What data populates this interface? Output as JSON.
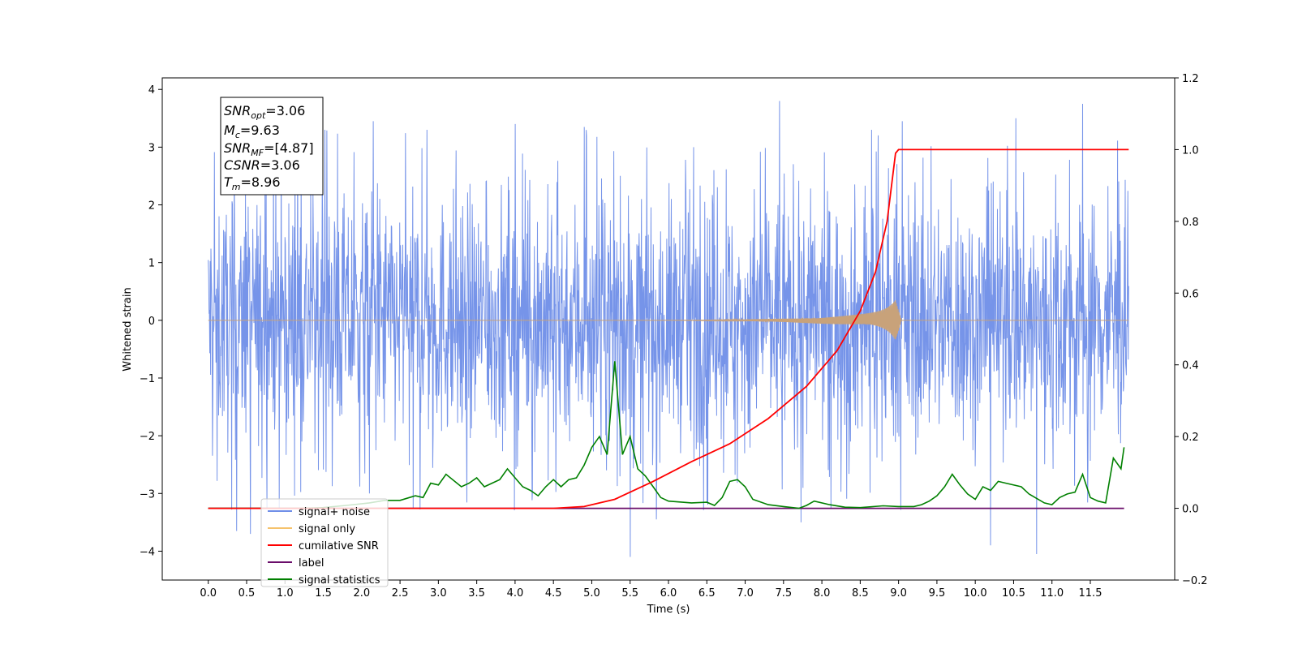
{
  "chart_data": {
    "type": "line",
    "xlabel": "Time (s)",
    "ylabel": "Whitened strain",
    "xlim": [
      -0.6,
      12.6
    ],
    "ylim": [
      -4.5,
      4.2
    ],
    "y2lim": [
      -0.2,
      1.2
    ],
    "x_ticks": [
      0.0,
      0.5,
      1.0,
      1.5,
      2.0,
      2.5,
      3.0,
      3.5,
      4.0,
      4.5,
      5.0,
      5.5,
      6.0,
      6.5,
      7.0,
      7.5,
      8.0,
      8.5,
      9.0,
      9.5,
      10.0,
      10.5,
      11.0,
      11.5
    ],
    "x_tick_labels": [
      "0.0",
      "0.5",
      "1.0",
      "1.5",
      "2.0",
      "2.5",
      "3.0",
      "3.5",
      "4.0",
      "4.5",
      "5.0",
      "5.5",
      "6.0",
      "6.5",
      "7.0",
      "7.5",
      "8.0",
      "8.5",
      "9.0",
      "9.5",
      "10.0",
      "10.5",
      "11.0",
      "11.5"
    ],
    "y_ticks": [
      -4,
      -3,
      -2,
      -1,
      0,
      1,
      2,
      3,
      4
    ],
    "y_tick_labels": [
      "−4",
      "−3",
      "−2",
      "−1",
      "0",
      "1",
      "2",
      "3",
      "4"
    ],
    "y2_ticks": [
      -0.2,
      0.0,
      0.2,
      0.4,
      0.6,
      0.8,
      1.0,
      1.2
    ],
    "y2_tick_labels": [
      "−0.2",
      "0.0",
      "0.2",
      "0.4",
      "0.6",
      "0.8",
      "1.0",
      "1.2"
    ],
    "info_box": {
      "snr_opt": {
        "sym": "SNR",
        "sub": "opt",
        "val": "=3.06"
      },
      "mc": {
        "sym": "M",
        "sub": "c",
        "val": "=9.63"
      },
      "snr_mf": {
        "sym": "SNR",
        "sub": "MF",
        "val": "=[4.87]"
      },
      "csnr": {
        "sym": "CSNR",
        "sub": "",
        "val": "=3.06"
      },
      "tm": {
        "sym": "T",
        "sub": "m",
        "val": "=8.96"
      }
    },
    "legend": {
      "placement": "lower-left",
      "items": [
        {
          "label": "signal+ noise",
          "color": "#6f8ee8"
        },
        {
          "label": "signal only",
          "color": "#f5c26b"
        },
        {
          "label": "cumilative SNR",
          "color": "#ff0000"
        },
        {
          "label": "label",
          "color": "#6a0d6a"
        },
        {
          "label": "signal statistics",
          "color": "#008000"
        }
      ]
    },
    "series": [
      {
        "name": "signal+ noise",
        "axis": "left",
        "color": "#6f8ee8",
        "x_range": [
          0.0,
          12.0
        ],
        "envelope_typical": [
          -1.9,
          1.9
        ],
        "extremes": [
          {
            "x": 0.37,
            "y": -3.65
          },
          {
            "x": 0.55,
            "y": -3.7
          },
          {
            "x": 0.85,
            "y": 3.5
          },
          {
            "x": 1.52,
            "y": 3.3
          },
          {
            "x": 2.15,
            "y": 3.45
          },
          {
            "x": 2.85,
            "y": 3.3
          },
          {
            "x": 4.0,
            "y": 3.4
          },
          {
            "x": 4.9,
            "y": 3.35
          },
          {
            "x": 5.5,
            "y": -4.1
          },
          {
            "x": 5.84,
            "y": -3.45
          },
          {
            "x": 6.33,
            "y": 3.0
          },
          {
            "x": 7.45,
            "y": 3.8
          },
          {
            "x": 7.73,
            "y": -3.5
          },
          {
            "x": 8.65,
            "y": 3.3
          },
          {
            "x": 9.05,
            "y": 3.45
          },
          {
            "x": 10.2,
            "y": -3.9
          },
          {
            "x": 10.53,
            "y": 3.5
          },
          {
            "x": 10.8,
            "y": -4.05
          },
          {
            "x": 11.4,
            "y": 3.75
          }
        ]
      },
      {
        "name": "signal only",
        "axis": "left",
        "color": "#c8a27a",
        "chirp": {
          "start": 4.5,
          "merger": 8.96,
          "peak_amplitude": 0.4,
          "end": 12.0
        }
      },
      {
        "name": "cumilative SNR",
        "axis": "right",
        "color": "#ff0000",
        "x": [
          0.0,
          4.5,
          4.9,
          5.3,
          5.8,
          6.3,
          6.8,
          7.3,
          7.8,
          8.2,
          8.5,
          8.7,
          8.85,
          8.96,
          9.0,
          12.0
        ],
        "y": [
          0.0,
          0.0,
          0.005,
          0.025,
          0.075,
          0.13,
          0.18,
          0.25,
          0.34,
          0.44,
          0.55,
          0.66,
          0.8,
          0.99,
          1.0,
          1.0
        ]
      },
      {
        "name": "label",
        "axis": "right",
        "color": "#6a0d6a",
        "x": [
          0.0,
          11.94
        ],
        "y": [
          0.0,
          0.0
        ]
      },
      {
        "name": "signal statistics",
        "axis": "right",
        "color": "#008000",
        "x": [
          0.0,
          0.3,
          0.6,
          0.9,
          1.2,
          1.5,
          1.8,
          2.1,
          2.3,
          2.5,
          2.7,
          2.8,
          2.9,
          3.0,
          3.1,
          3.3,
          3.4,
          3.5,
          3.6,
          3.7,
          3.8,
          3.9,
          4.0,
          4.1,
          4.2,
          4.3,
          4.4,
          4.5,
          4.6,
          4.7,
          4.8,
          4.9,
          5.0,
          5.1,
          5.2,
          5.3,
          5.4,
          5.5,
          5.6,
          5.7,
          5.8,
          5.9,
          6.0,
          6.3,
          6.5,
          6.6,
          6.7,
          6.8,
          6.9,
          7.0,
          7.1,
          7.3,
          7.5,
          7.7,
          7.8,
          7.9,
          8.1,
          8.3,
          8.5,
          8.8,
          9.0,
          9.2,
          9.3,
          9.4,
          9.5,
          9.6,
          9.7,
          9.8,
          9.9,
          10.0,
          10.1,
          10.2,
          10.3,
          10.4,
          10.6,
          10.7,
          10.9,
          11.0,
          11.1,
          11.2,
          11.3,
          11.4,
          11.5,
          11.6,
          11.7,
          11.8,
          11.9,
          11.94
        ],
        "y": [
          0.0,
          0.0,
          0.0,
          0.0,
          0.0,
          0.002,
          0.008,
          0.015,
          0.022,
          0.022,
          0.035,
          0.03,
          0.07,
          0.065,
          0.095,
          0.06,
          0.07,
          0.085,
          0.06,
          0.07,
          0.08,
          0.11,
          0.085,
          0.06,
          0.05,
          0.035,
          0.06,
          0.08,
          0.06,
          0.08,
          0.085,
          0.12,
          0.17,
          0.2,
          0.15,
          0.41,
          0.15,
          0.2,
          0.11,
          0.09,
          0.06,
          0.03,
          0.02,
          0.015,
          0.017,
          0.008,
          0.03,
          0.075,
          0.08,
          0.06,
          0.025,
          0.01,
          0.005,
          0.0,
          0.008,
          0.02,
          0.01,
          0.003,
          0.002,
          0.007,
          0.005,
          0.005,
          0.01,
          0.02,
          0.035,
          0.06,
          0.095,
          0.065,
          0.04,
          0.025,
          0.06,
          0.05,
          0.075,
          0.07,
          0.06,
          0.04,
          0.015,
          0.01,
          0.03,
          0.04,
          0.045,
          0.095,
          0.03,
          0.02,
          0.015,
          0.14,
          0.11,
          0.17
        ]
      }
    ]
  }
}
